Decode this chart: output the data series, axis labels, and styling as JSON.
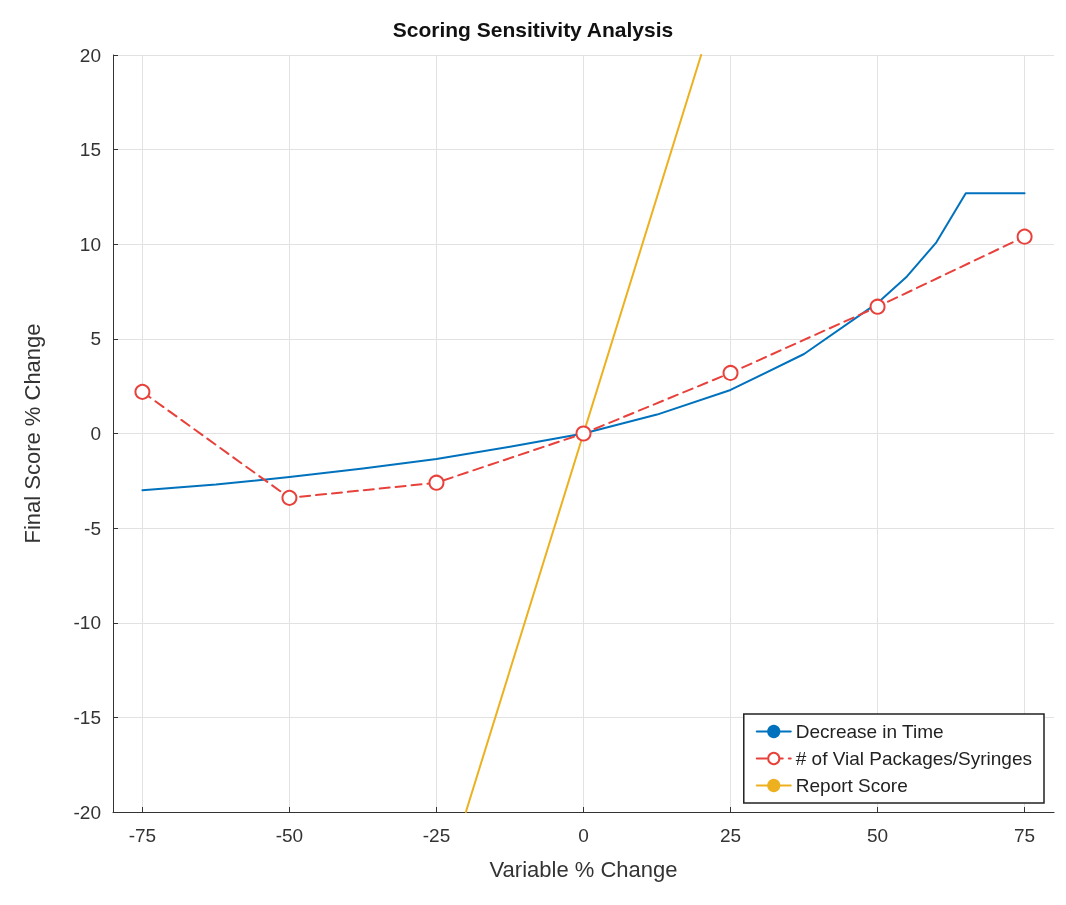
{
  "chart_data": {
    "type": "line",
    "title": "Scoring Sensitivity Analysis",
    "xlabel": "Variable % Change",
    "ylabel": "Final Score % Change",
    "xlim": [
      -80,
      80
    ],
    "xticks": [
      -75,
      -50,
      -25,
      0,
      25,
      50,
      75
    ],
    "ylim": [
      -20,
      20
    ],
    "yticks": [
      -20,
      -15,
      -10,
      -5,
      0,
      5,
      10,
      15,
      20
    ],
    "grid": true,
    "legend": "bottom right",
    "series": [
      {
        "name": "Decrease in Time",
        "color": "#0072bd",
        "marker": "none",
        "line_style": "solid",
        "x": [
          -75,
          -62.5,
          -50,
          -37.5,
          -25,
          -12.5,
          0,
          12.5,
          25,
          37.5,
          50,
          55,
          60,
          65,
          75
        ],
        "values": [
          -3.0,
          -2.7,
          -2.3,
          -1.85,
          -1.35,
          -0.7,
          0,
          1.0,
          2.3,
          4.2,
          6.9,
          8.3,
          10.1,
          12.7,
          12.7
        ]
      },
      {
        "name": "# of Vial Packages/Syringes",
        "color": "#e8413b",
        "marker": "circle",
        "line_style": "dashed",
        "x": [
          -75,
          -50,
          -25,
          0,
          25,
          50,
          75
        ],
        "values": [
          2.2,
          -3.4,
          -2.6,
          0,
          3.2,
          6.7,
          10.4
        ]
      },
      {
        "name": "Report Score",
        "color": "#edb120",
        "marker": "none",
        "line_style": "solid",
        "x": [
          -20,
          20
        ],
        "values": [
          -20,
          20
        ]
      }
    ]
  }
}
